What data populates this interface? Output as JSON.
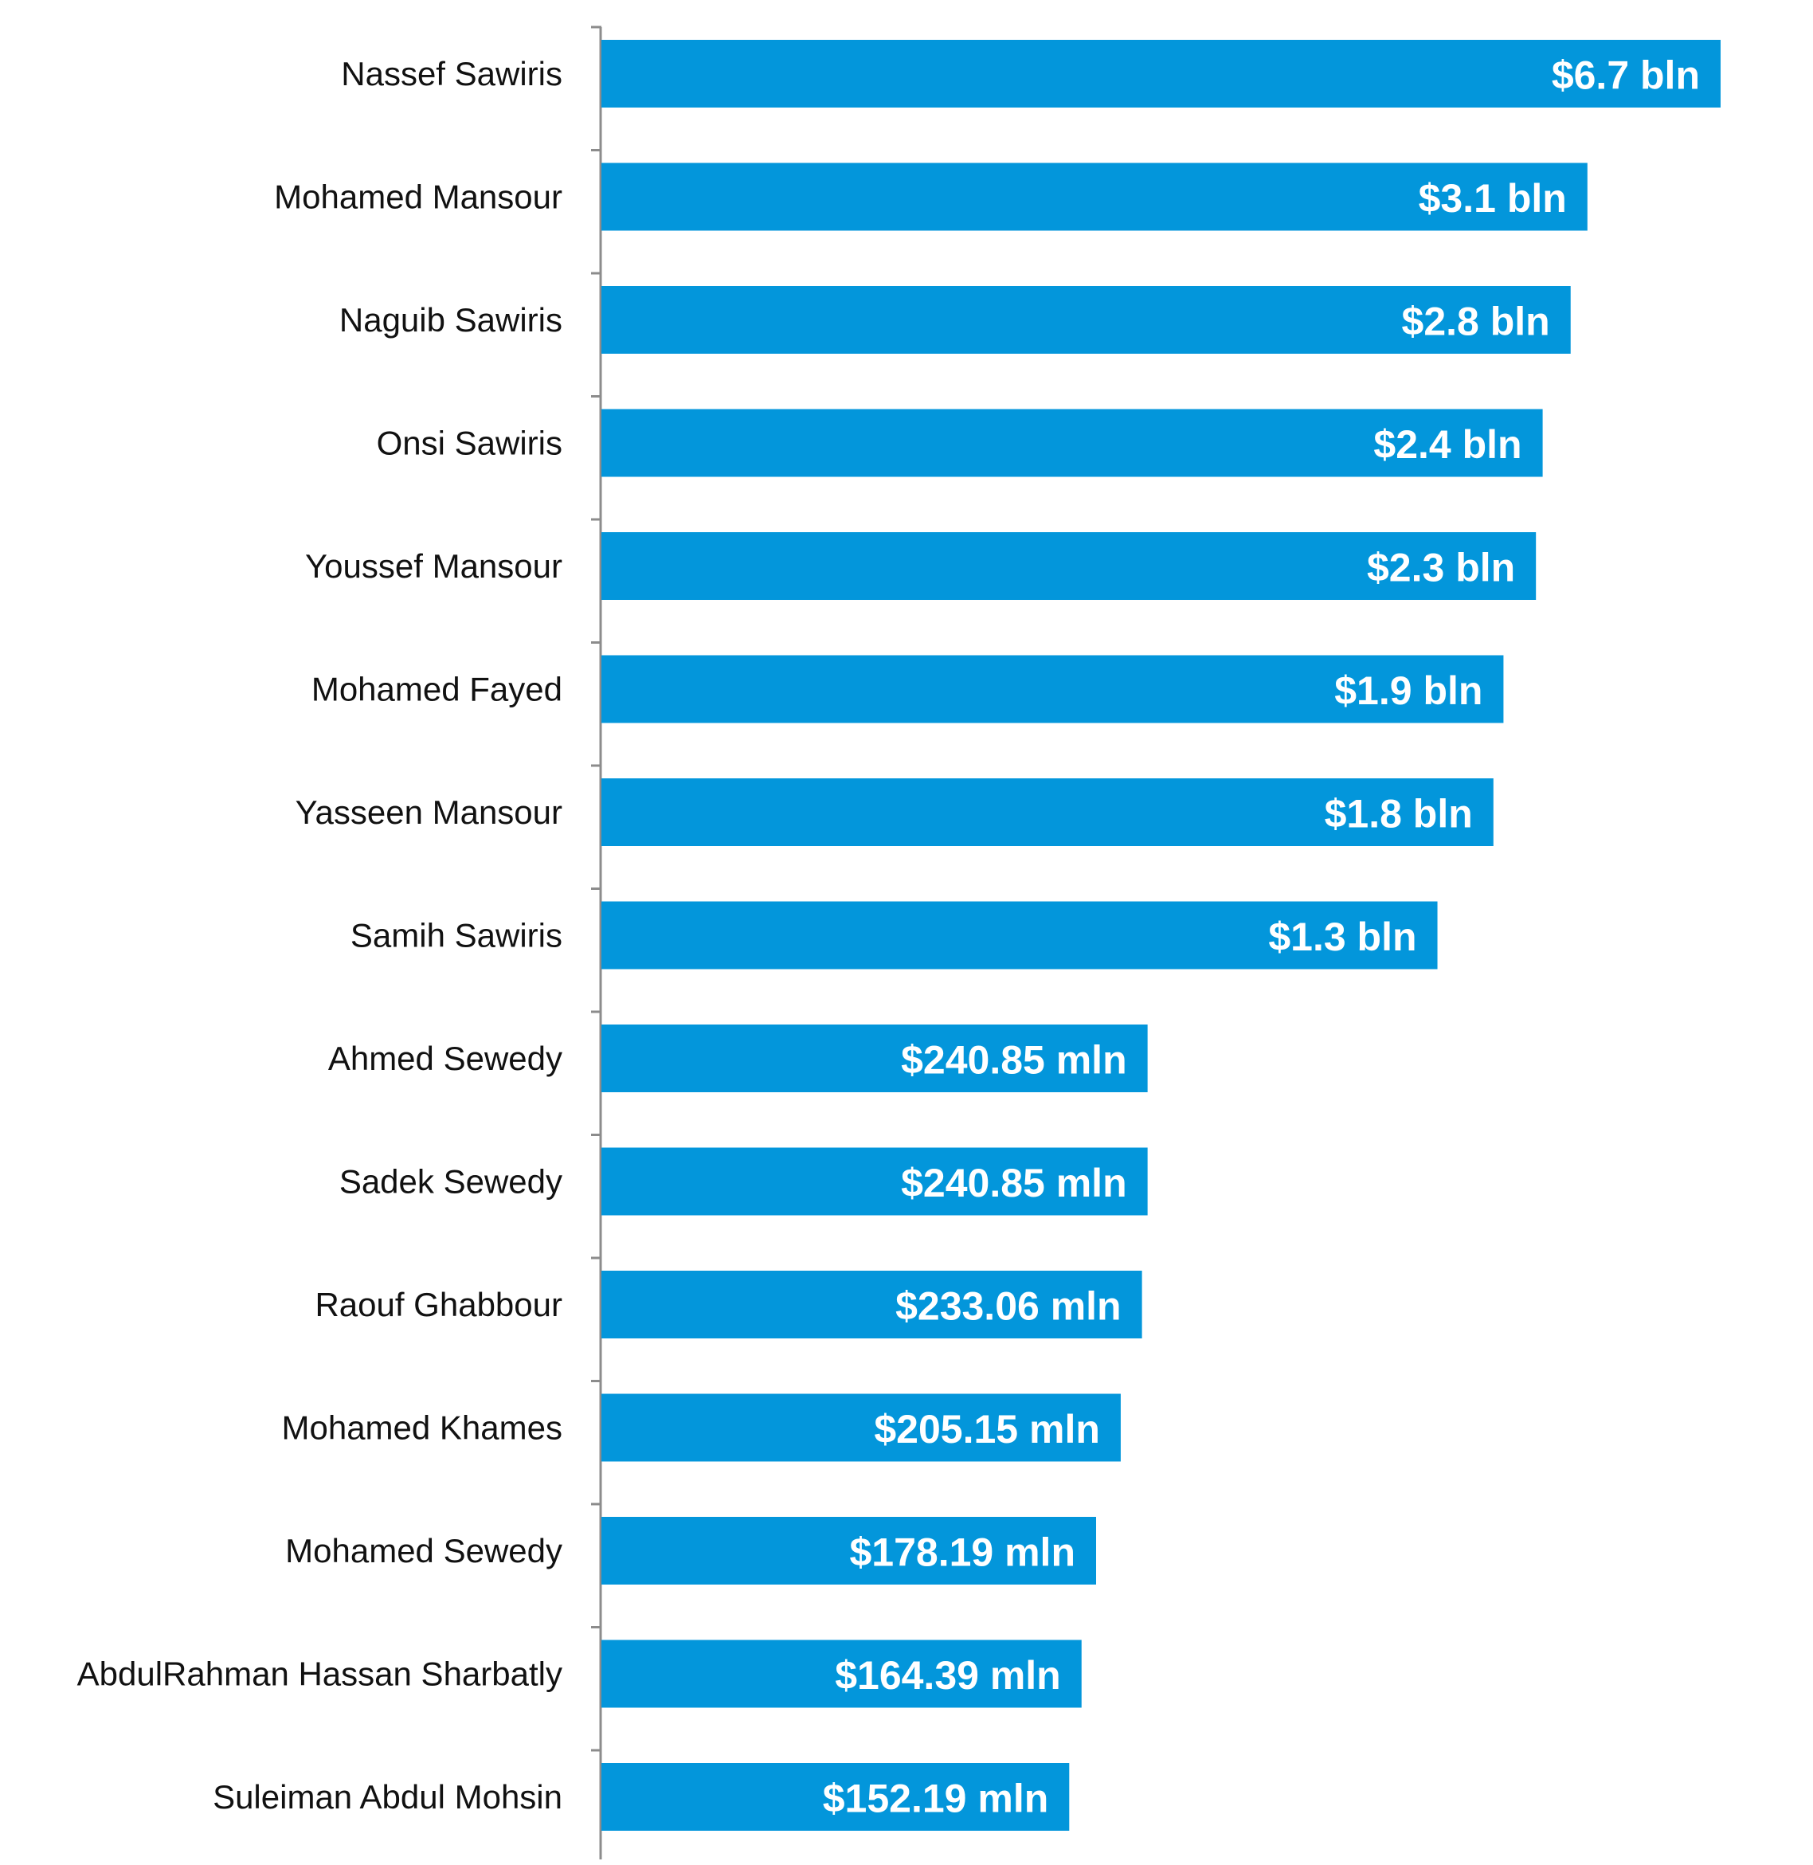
{
  "chart_data": {
    "type": "bar",
    "orientation": "horizontal",
    "title": "",
    "xlabel": "",
    "ylabel": "",
    "bar_color": "#0396DB",
    "categories": [
      "Nassef Sawiris",
      "Mohamed Mansour",
      "Naguib Sawiris",
      "Onsi Sawiris",
      "Youssef Mansour",
      "Mohamed Fayed",
      "Yasseen Mansour",
      "Samih Sawiris",
      "Ahmed Sewedy",
      "Sadek Sewedy",
      "Raouf Ghabbour",
      "Mohamed Khames",
      "Mohamed Sewedy",
      "AbdulRahman Hassan Sharbatly",
      "Suleiman Abdul Mohsin"
    ],
    "value_labels": [
      "$6.7 bln",
      "$3.1 bln",
      "$2.8 bln",
      "$2.4 bln",
      "$2.3 bln",
      "$1.9 bln",
      "$1.8 bln",
      "$1.3 bln",
      "$240.85 mln",
      "$240.85 mln",
      "$233.06 mln",
      "$205.15 mln",
      "$178.19 mln",
      "$164.39 mln",
      "$152.19 mln"
    ],
    "bar_lengths": [
      1.0,
      0.881,
      0.866,
      0.841,
      0.835,
      0.806,
      0.797,
      0.747,
      0.488,
      0.488,
      0.483,
      0.464,
      0.442,
      0.429,
      0.418
    ],
    "grid": false,
    "legend": "none"
  }
}
